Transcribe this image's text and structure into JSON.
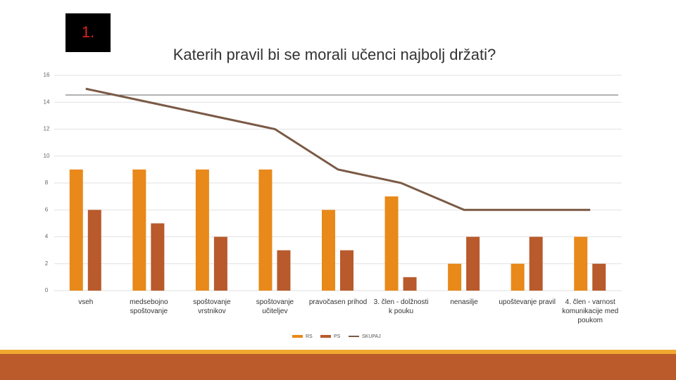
{
  "badge": "1.",
  "chart_data": {
    "type": "bar_line",
    "title": "Katerih pravil bi se morali učenci najbolj držati?",
    "categories": [
      "vseh",
      "medsebojno spoštovanje",
      "spoštovanje vrstnikov",
      "spoštovanje učiteljev",
      "pravočasen prihod",
      "3. člen - dolžnosti k pouku",
      "nenasilje",
      "upoštevanje pravil",
      "4. člen - varnost komunikacije med poukom"
    ],
    "series": [
      {
        "name": "RS",
        "type": "bar",
        "color": "#e8891a",
        "values": [
          9,
          9,
          9,
          9,
          6,
          7,
          2,
          2,
          4
        ]
      },
      {
        "name": "PS",
        "type": "bar",
        "color": "#b85a2c",
        "values": [
          6,
          5,
          4,
          3,
          3,
          1,
          4,
          4,
          2
        ]
      },
      {
        "name": "SKUPAJ",
        "type": "line",
        "color": "#7a5a45",
        "values": [
          15,
          14,
          13,
          12,
          9,
          8,
          6,
          6,
          6
        ]
      }
    ],
    "ylim": [
      0,
      16
    ],
    "yticks": [
      0,
      2,
      4,
      6,
      8,
      10,
      12,
      14,
      16
    ],
    "grid": true,
    "legend": "bottom"
  }
}
